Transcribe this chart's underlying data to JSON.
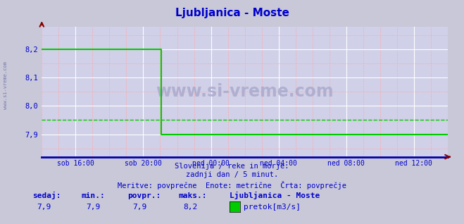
{
  "title": "Ljubljanica - Moste",
  "title_color": "#0000cc",
  "bg_color": "#c8c8d8",
  "plot_bg_color": "#d0d0e8",
  "line_color": "#00cc00",
  "avg_line_color": "#00cc00",
  "axis_color": "#000080",
  "grid_color_major": "#ffffff",
  "grid_color_minor": "#ffaaaa",
  "ylim_min": 7.82,
  "ylim_max": 8.28,
  "yticks": [
    7.9,
    8.0,
    8.1,
    8.2
  ],
  "ytick_labels": [
    "7,9",
    "8,0",
    "8,1",
    "8,2"
  ],
  "avg_value": 7.95,
  "max_value": 8.2,
  "min_value": 7.9,
  "sedaj_value": "7,9",
  "min_label": "7,9",
  "povpr_label": "7,9",
  "maks_label": "8,2",
  "xtick_labels": [
    "sob 16:00",
    "sob 20:00",
    "ned 00:00",
    "ned 04:00",
    "ned 08:00",
    "ned 12:00"
  ],
  "n_steps": 289,
  "drop_step": 84,
  "high_val": 8.2,
  "low_val": 7.9,
  "subtitle1": "Slovenija / reke in morje.",
  "subtitle2": "zadnji dan / 5 minut.",
  "subtitle3": "Meritve: povprečne  Enote: metrične  Črta: povprečje",
  "legend_station": "Ljubljanica - Moste",
  "legend_label": "pretok[m3/s]",
  "text_color_blue": "#0000cc",
  "watermark": "www.si-vreme.com",
  "watermark_color": "#aaaacc",
  "left_watermark": "www.si-vreme.com"
}
